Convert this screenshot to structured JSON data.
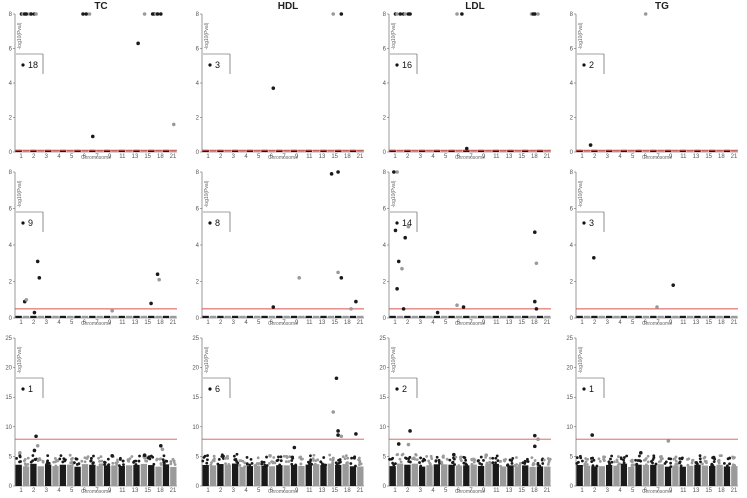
{
  "chart_data": {
    "type": "scatter",
    "column_titles": [
      "TC",
      "HDL",
      "LDL",
      "TG"
    ],
    "chrom_ticks": [
      "1",
      "2",
      "3",
      "4",
      "5",
      "6",
      "7",
      "9",
      "11",
      "13",
      "15",
      "18",
      "21"
    ],
    "xlabel": "Chromosome",
    "colors": {
      "dark": "#1a1a1a",
      "light": "#9a9a9a",
      "threshold": "#d9534f"
    },
    "rows": [
      {
        "ylabel": "-log10(Pval)",
        "ylim": [
          0,
          8
        ],
        "yticks": [
          "0",
          "2",
          "4",
          "6",
          "8"
        ],
        "threshold": 0.1,
        "panels": [
          {
            "count": "18",
            "points": [
              [
                0.04,
                8
              ],
              [
                0.05,
                8
              ],
              [
                0.06,
                8
              ],
              [
                0.07,
                8
              ],
              [
                0.09,
                8
              ],
              [
                0.1,
                8
              ],
              [
                0.12,
                8
              ],
              [
                0.13,
                8
              ],
              [
                0.42,
                8
              ],
              [
                0.44,
                8
              ],
              [
                0.46,
                8
              ],
              [
                0.48,
                0.9
              ],
              [
                0.76,
                6.3
              ],
              [
                0.8,
                8
              ],
              [
                0.85,
                8
              ],
              [
                0.86,
                8
              ],
              [
                0.87,
                8
              ],
              [
                0.88,
                8
              ],
              [
                0.9,
                8
              ],
              [
                0.98,
                1.6
              ]
            ]
          },
          {
            "count": "3",
            "points": [
              [
                0.44,
                3.7
              ],
              [
                0.81,
                8
              ],
              [
                0.86,
                8
              ]
            ]
          },
          {
            "count": "16",
            "points": [
              [
                0.04,
                8
              ],
              [
                0.05,
                8
              ],
              [
                0.07,
                8
              ],
              [
                0.09,
                8
              ],
              [
                0.1,
                8
              ],
              [
                0.12,
                8
              ],
              [
                0.13,
                8
              ],
              [
                0.42,
                8
              ],
              [
                0.45,
                8
              ],
              [
                0.48,
                0.2
              ],
              [
                0.88,
                8
              ],
              [
                0.89,
                8
              ],
              [
                0.9,
                8
              ],
              [
                0.92,
                8
              ]
            ]
          },
          {
            "count": "2",
            "points": [
              [
                0.09,
                0.4
              ],
              [
                0.43,
                8
              ]
            ]
          }
        ]
      },
      {
        "ylabel": "-log10(Pval)",
        "ylim": [
          0,
          8
        ],
        "yticks": [
          "0",
          "2",
          "4",
          "6",
          "8"
        ],
        "threshold": 0.5,
        "panels": [
          {
            "count": "9",
            "points": [
              [
                0.06,
                0.9
              ],
              [
                0.07,
                1.0
              ],
              [
                0.14,
                3.1
              ],
              [
                0.15,
                2.2
              ],
              [
                0.6,
                0.4
              ],
              [
                0.84,
                0.8
              ],
              [
                0.88,
                2.4
              ],
              [
                0.89,
                2.1
              ],
              [
                0.12,
                0.3
              ]
            ]
          },
          {
            "count": "8",
            "points": [
              [
                0.44,
                0.6
              ],
              [
                0.6,
                2.2
              ],
              [
                0.8,
                7.9
              ],
              [
                0.84,
                8
              ],
              [
                0.84,
                2.5
              ],
              [
                0.86,
                2.2
              ],
              [
                0.95,
                0.9
              ],
              [
                0.92,
                0.5
              ]
            ]
          },
          {
            "count": "14",
            "points": [
              [
                0.03,
                8
              ],
              [
                0.05,
                8
              ],
              [
                0.04,
                4.8
              ],
              [
                0.06,
                3.1
              ],
              [
                0.08,
                2.7
              ],
              [
                0.05,
                1.6
              ],
              [
                0.1,
                4.4
              ],
              [
                0.12,
                5.0
              ],
              [
                0.09,
                0.5
              ],
              [
                0.3,
                0.3
              ],
              [
                0.42,
                0.7
              ],
              [
                0.46,
                0.6
              ],
              [
                0.9,
                4.7
              ],
              [
                0.91,
                3.0
              ],
              [
                0.9,
                0.9
              ],
              [
                0.91,
                0.5
              ]
            ]
          },
          {
            "count": "3",
            "points": [
              [
                0.11,
                3.3
              ],
              [
                0.5,
                0.6
              ],
              [
                0.6,
                1.8
              ]
            ]
          }
        ]
      },
      {
        "ylabel": "-log10(Pval)",
        "ylim": [
          0,
          25
        ],
        "yticks": [
          "0",
          "5",
          "10",
          "15",
          "20",
          "25"
        ],
        "threshold": 7.9,
        "panels": [
          {
            "count": "1",
            "points": [
              [
                0.13,
                8.4
              ],
              [
                0.14,
                6.8
              ],
              [
                0.12,
                6.0
              ],
              [
                0.9,
                6.8
              ],
              [
                0.91,
                6.2
              ],
              [
                0.8,
                5.2
              ],
              [
                0.6,
                5.1
              ],
              [
                0.03,
                5.6
              ]
            ]
          },
          {
            "count": "6",
            "points": [
              [
                0.83,
                18.2
              ],
              [
                0.81,
                12.5
              ],
              [
                0.84,
                9.3
              ],
              [
                0.84,
                8.6
              ],
              [
                0.86,
                8.4
              ],
              [
                0.95,
                8.8
              ],
              [
                0.57,
                6.5
              ],
              [
                0.42,
                5.1
              ]
            ]
          },
          {
            "count": "2",
            "points": [
              [
                0.13,
                9.3
              ],
              [
                0.12,
                7.0
              ],
              [
                0.06,
                7.1
              ],
              [
                0.9,
                8.5
              ],
              [
                0.92,
                7.9
              ],
              [
                0.9,
                6.7
              ],
              [
                0.4,
                5.3
              ],
              [
                0.6,
                5.2
              ]
            ]
          },
          {
            "count": "1",
            "points": [
              [
                0.1,
                8.6
              ],
              [
                0.57,
                7.6
              ],
              [
                0.4,
                5.6
              ],
              [
                0.85,
                4.8
              ]
            ]
          }
        ]
      }
    ]
  }
}
